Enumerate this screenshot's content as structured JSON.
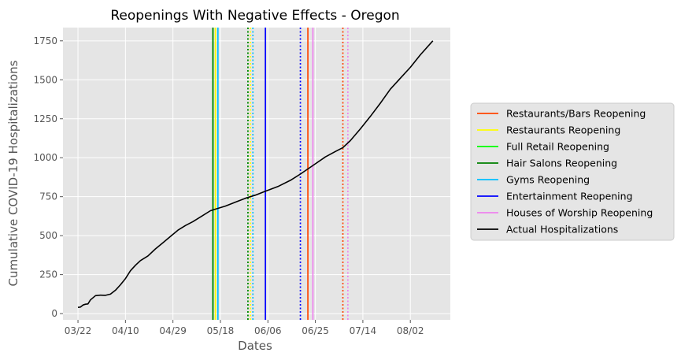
{
  "chart_data": {
    "type": "line",
    "title": "Reopenings With Negative Effects - Oregon",
    "xlabel": "Dates",
    "ylabel": "Cumulative COVID-19 Hospitalizations",
    "x_ticks": [
      "03/22",
      "04/10",
      "04/29",
      "05/18",
      "06/06",
      "06/25",
      "07/14",
      "08/02"
    ],
    "x_range": [
      "2020-03-16",
      "2020-08-18"
    ],
    "y_ticks": [
      0,
      250,
      500,
      750,
      1000,
      1250,
      1500,
      1750
    ],
    "ylim": [
      -40,
      1835
    ],
    "grid": true,
    "legend_position": "right",
    "series": [
      {
        "name": "Actual Hospitalizations",
        "color": "#000000",
        "points": [
          [
            "2020-03-22",
            40
          ],
          [
            "2020-03-23",
            42
          ],
          [
            "2020-03-24",
            55
          ],
          [
            "2020-03-25",
            60
          ],
          [
            "2020-03-26",
            62
          ],
          [
            "2020-03-27",
            88
          ],
          [
            "2020-03-29",
            115
          ],
          [
            "2020-03-31",
            118
          ],
          [
            "2020-04-02",
            117
          ],
          [
            "2020-04-04",
            125
          ],
          [
            "2020-04-06",
            150
          ],
          [
            "2020-04-08",
            185
          ],
          [
            "2020-04-10",
            225
          ],
          [
            "2020-04-12",
            275
          ],
          [
            "2020-04-14",
            310
          ],
          [
            "2020-04-16",
            340
          ],
          [
            "2020-04-19",
            370
          ],
          [
            "2020-04-22",
            415
          ],
          [
            "2020-04-25",
            455
          ],
          [
            "2020-04-28",
            495
          ],
          [
            "2020-05-01",
            535
          ],
          [
            "2020-05-04",
            565
          ],
          [
            "2020-05-07",
            590
          ],
          [
            "2020-05-10",
            620
          ],
          [
            "2020-05-14",
            660
          ],
          [
            "2020-05-17",
            675
          ],
          [
            "2020-05-20",
            690
          ],
          [
            "2020-05-24",
            715
          ],
          [
            "2020-05-28",
            740
          ],
          [
            "2020-06-01",
            760
          ],
          [
            "2020-06-05",
            785
          ],
          [
            "2020-06-10",
            815
          ],
          [
            "2020-06-15",
            855
          ],
          [
            "2020-06-19",
            895
          ],
          [
            "2020-06-24",
            950
          ],
          [
            "2020-06-29",
            1005
          ],
          [
            "2020-07-03",
            1040
          ],
          [
            "2020-07-06",
            1065
          ],
          [
            "2020-07-09",
            1110
          ],
          [
            "2020-07-13",
            1185
          ],
          [
            "2020-07-17",
            1265
          ],
          [
            "2020-07-21",
            1350
          ],
          [
            "2020-07-25",
            1440
          ],
          [
            "2020-07-29",
            1510
          ],
          [
            "2020-08-02",
            1580
          ],
          [
            "2020-08-06",
            1660
          ],
          [
            "2020-08-11",
            1750
          ]
        ]
      }
    ],
    "reopenings": [
      {
        "name": "Restaurants/Bars Reopening",
        "color": "#ff4500",
        "lines": [
          {
            "date": "2020-06-22",
            "style": "solid"
          },
          {
            "date": "2020-07-06",
            "style": "dotted"
          }
        ]
      },
      {
        "name": "Restaurants Reopening",
        "color": "#ffff00",
        "lines": [
          {
            "date": "2020-05-16",
            "style": "solid"
          },
          {
            "date": "2020-05-30",
            "style": "dotted"
          }
        ]
      },
      {
        "name": "Full Retail Reopening",
        "color": "#00ff00",
        "lines": [
          {
            "date": "2020-05-15",
            "style": "solid"
          },
          {
            "date": "2020-05-29",
            "style": "dotted"
          }
        ]
      },
      {
        "name": "Hair Salons Reopening",
        "color": "#008000",
        "lines": [
          {
            "date": "2020-05-15",
            "style": "solid"
          },
          {
            "date": "2020-05-29",
            "style": "dotted"
          }
        ]
      },
      {
        "name": "Gyms Reopening",
        "color": "#00bfff",
        "lines": [
          {
            "date": "2020-05-17",
            "style": "solid"
          },
          {
            "date": "2020-05-31",
            "style": "dotted"
          }
        ]
      },
      {
        "name": "Entertainment Reopening",
        "color": "#0000ff",
        "lines": [
          {
            "date": "2020-06-05",
            "style": "solid"
          },
          {
            "date": "2020-06-19",
            "style": "dotted"
          }
        ]
      },
      {
        "name": "Houses of Worship Reopening",
        "color": "#ee82ee",
        "lines": [
          {
            "date": "2020-06-24",
            "style": "solid"
          },
          {
            "date": "2020-07-08",
            "style": "dotted"
          }
        ]
      }
    ],
    "legend": [
      {
        "label": "Restaurants/Bars Reopening",
        "color": "#ff4500"
      },
      {
        "label": "Restaurants Reopening",
        "color": "#ffff00"
      },
      {
        "label": "Full Retail Reopening",
        "color": "#00ff00"
      },
      {
        "label": "Hair Salons Reopening",
        "color": "#008000"
      },
      {
        "label": "Gyms Reopening",
        "color": "#00bfff"
      },
      {
        "label": "Entertainment Reopening",
        "color": "#0000ff"
      },
      {
        "label": "Houses of Worship Reopening",
        "color": "#ee82ee"
      },
      {
        "label": "Actual Hospitalizations",
        "color": "#000000"
      }
    ],
    "colors": {
      "plot_background": "#e5e5e5",
      "grid": "#ffffff",
      "text": "#555555"
    }
  }
}
